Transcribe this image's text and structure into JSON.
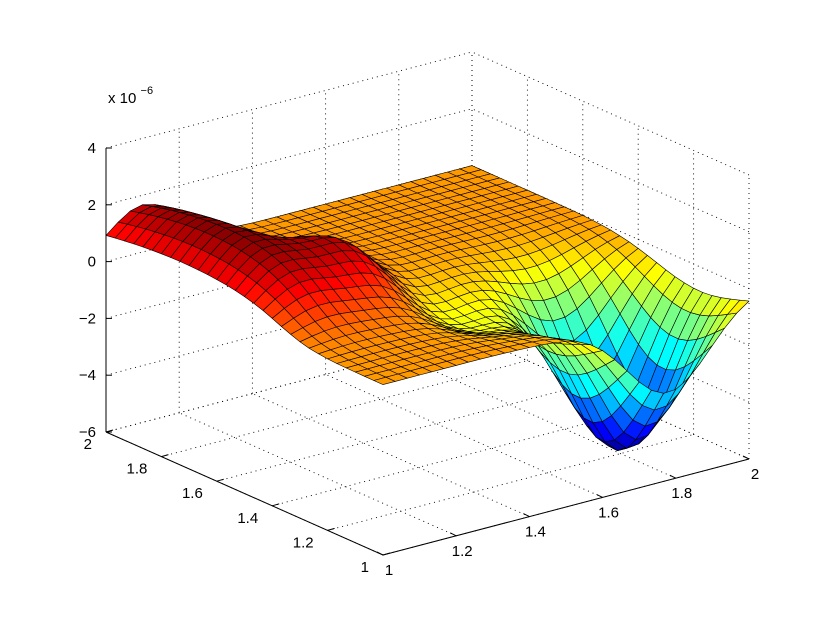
{
  "chart_data": {
    "type": "surface",
    "title": "",
    "xlabel": "",
    "ylabel": "",
    "zlabel": "",
    "z_multiplier_label": "x 10",
    "z_multiplier_exponent": "−6",
    "xlim": [
      1,
      2
    ],
    "ylim": [
      1,
      2
    ],
    "zlim": [
      -6,
      4
    ],
    "x_ticks": [
      "1",
      "1.2",
      "1.4",
      "1.6",
      "1.8",
      "2"
    ],
    "y_ticks": [
      "1",
      "1.2",
      "1.4",
      "1.6",
      "1.8",
      "2"
    ],
    "z_ticks": [
      "−6",
      "−4",
      "−2",
      "0",
      "2",
      "4"
    ],
    "colormap": "jet",
    "grid": true,
    "surface": {
      "grid_size": [
        30,
        30
      ],
      "features": [
        {
          "kind": "peak",
          "x": 1.1,
          "y": 1.72,
          "z_max": 2.1
        },
        {
          "kind": "trough",
          "x": 1.78,
          "y": 1.18,
          "z_min": -5.7
        },
        {
          "kind": "flat_plateau",
          "x_range": [
            1.35,
            2.0
          ],
          "y_range": [
            1.4,
            2.0
          ],
          "z": 0
        },
        {
          "kind": "flat_plateau",
          "x_range": [
            1.0,
            1.6
          ],
          "y_range": [
            1.0,
            1.4
          ],
          "z": -0.2
        }
      ]
    }
  }
}
